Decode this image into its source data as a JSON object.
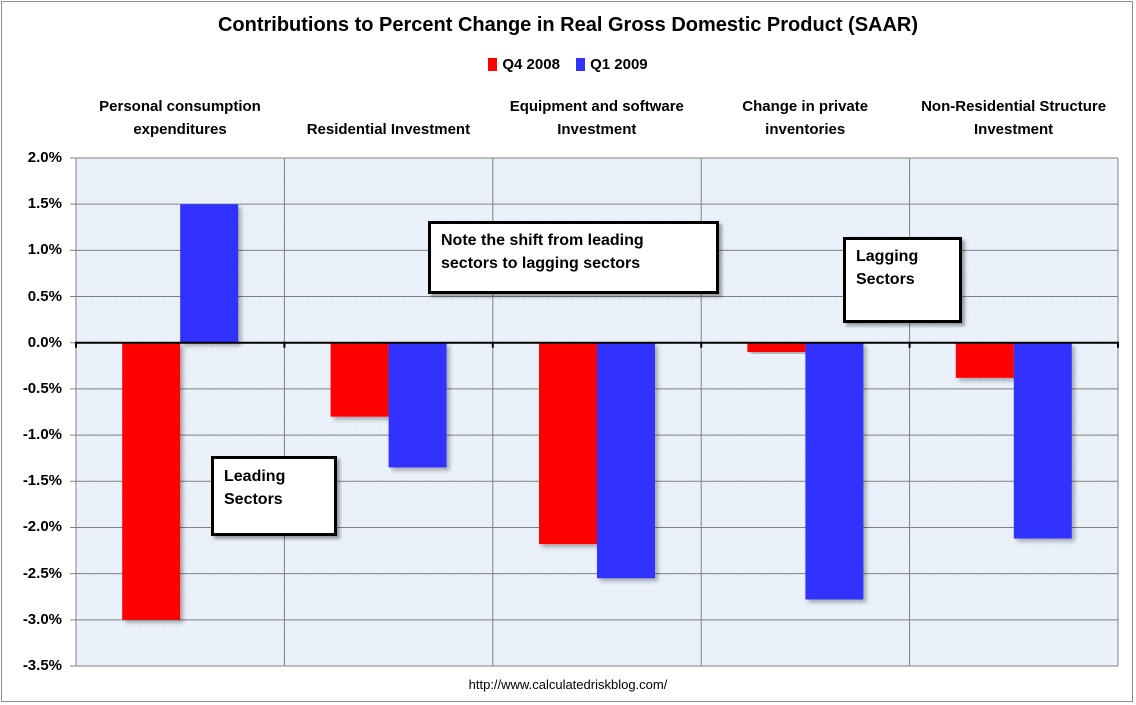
{
  "chart_data": {
    "type": "bar",
    "title": "Contributions to Percent Change in Real Gross Domestic Product (SAAR)",
    "xlabel": "",
    "ylabel": "",
    "categories": [
      [
        "Personal consumption",
        "expenditures"
      ],
      [
        "",
        "Residential Investment"
      ],
      [
        "Equipment and software",
        "Investment"
      ],
      [
        "Change in private",
        "inventories"
      ],
      [
        "Non-Residential Structure",
        "Investment"
      ]
    ],
    "series": [
      {
        "name": "Q4 2008",
        "color": "#ff0000",
        "values": [
          -3.0,
          -0.8,
          -2.18,
          -0.1,
          -0.38
        ]
      },
      {
        "name": "Q1 2009",
        "color": "#3333ff",
        "values": [
          1.5,
          -1.35,
          -2.55,
          -2.78,
          -2.12
        ]
      }
    ],
    "ylim": [
      -3.5,
      2.0
    ],
    "yticks": [
      2.0,
      1.5,
      1.0,
      0.5,
      0.0,
      -0.5,
      -1.0,
      -1.5,
      -2.0,
      -2.5,
      -3.0,
      -3.5
    ],
    "ytick_labels": [
      "2.0%",
      "1.5%",
      "1.0%",
      "0.5%",
      "0.0%",
      "-0.5%",
      "-1.0%",
      "-1.5%",
      "-2.0%",
      "-2.5%",
      "-3.0%",
      "-3.5%"
    ],
    "grid": true,
    "legend_position": "top-center",
    "annotations": [
      {
        "id": "leading",
        "text": [
          "Leading",
          "Sectors"
        ]
      },
      {
        "id": "note",
        "text": [
          "Note the shift from leading",
          "sectors to lagging sectors"
        ]
      },
      {
        "id": "lagging",
        "text": [
          "Lagging",
          "Sectors"
        ]
      }
    ]
  },
  "footer": "http://www.calculatedriskblog.com/",
  "colors": {
    "plot_bg": "#eaf1fa",
    "grid": "#808080",
    "axis": "#000000"
  }
}
